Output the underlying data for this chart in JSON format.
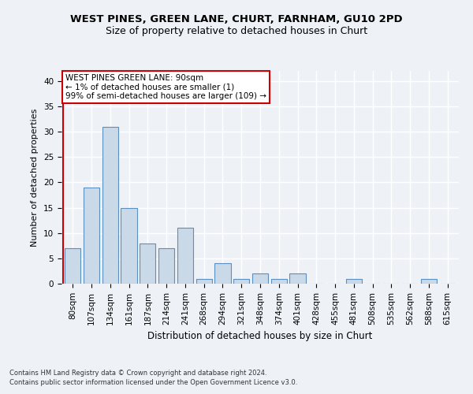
{
  "title1": "WEST PINES, GREEN LANE, CHURT, FARNHAM, GU10 2PD",
  "title2": "Size of property relative to detached houses in Churt",
  "xlabel": "Distribution of detached houses by size in Churt",
  "ylabel": "Number of detached properties",
  "categories": [
    "80sqm",
    "107sqm",
    "134sqm",
    "161sqm",
    "187sqm",
    "214sqm",
    "241sqm",
    "268sqm",
    "294sqm",
    "321sqm",
    "348sqm",
    "374sqm",
    "401sqm",
    "428sqm",
    "455sqm",
    "481sqm",
    "508sqm",
    "535sqm",
    "562sqm",
    "588sqm",
    "615sqm"
  ],
  "values": [
    7,
    19,
    31,
    15,
    8,
    7,
    11,
    1,
    4,
    1,
    2,
    1,
    2,
    0,
    0,
    1,
    0,
    0,
    0,
    1,
    0
  ],
  "bar_color": "#c9d9e8",
  "bar_edge_color": "#5a8fbf",
  "annotation_text": "WEST PINES GREEN LANE: 90sqm\n← 1% of detached houses are smaller (1)\n99% of semi-detached houses are larger (109) →",
  "annotation_box_color": "#ffffff",
  "annotation_box_edge_color": "#cc0000",
  "ylim": [
    0,
    42
  ],
  "yticks": [
    0,
    5,
    10,
    15,
    20,
    25,
    30,
    35,
    40
  ],
  "footnote1": "Contains HM Land Registry data © Crown copyright and database right 2024.",
  "footnote2": "Contains public sector information licensed under the Open Government Licence v3.0.",
  "bg_color": "#eef2f7",
  "plot_bg_color": "#eef2f7",
  "grid_color": "#ffffff",
  "vline_color": "#cc0000",
  "title1_fontsize": 9.5,
  "title2_fontsize": 9.0,
  "xlabel_fontsize": 8.5,
  "ylabel_fontsize": 8.0,
  "tick_fontsize": 7.5,
  "annot_fontsize": 7.5,
  "footnote_fontsize": 6.0
}
